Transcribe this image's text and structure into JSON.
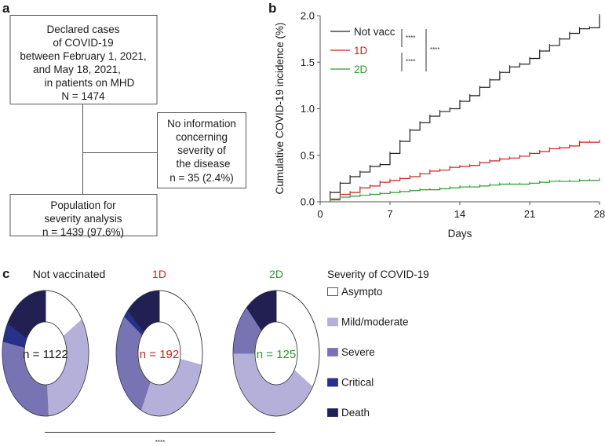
{
  "panels": {
    "a": "a",
    "b": "b",
    "c": "c"
  },
  "flowchart": {
    "top_box": [
      "Declared cases",
      "of COVID-19",
      "between  February 1, 2021,",
      "and May 18, 2021,",
      "in patients on MHD",
      "N = 1474"
    ],
    "excluded_box": [
      "No information",
      "concerning",
      "severity of",
      "the disease",
      "n = 35 (2.4%)"
    ],
    "bottom_box": [
      "Population for",
      "severity analysis",
      "n = 1439 (97.6%)"
    ]
  },
  "chart_data": [
    {
      "type": "line",
      "step": true,
      "xlabel": "Days",
      "ylabel": "Cumulative COVID-19  incidence (%)",
      "xlim": [
        0,
        28
      ],
      "ylim": [
        0,
        2.0
      ],
      "xticks": [
        "0",
        "7",
        "14",
        "21",
        "28"
      ],
      "yticks": [
        "0.0",
        "0.5",
        "1.0",
        "1.5",
        "2.0"
      ],
      "x": [
        1,
        2,
        3,
        4,
        5,
        6,
        7,
        8,
        9,
        10,
        11,
        12,
        13,
        14,
        15,
        16,
        17,
        18,
        19,
        20,
        21,
        22,
        23,
        24,
        25,
        26,
        27,
        28
      ],
      "series": [
        {
          "name": "Not vacc",
          "color": "#222222",
          "values": [
            0.1,
            0.2,
            0.27,
            0.32,
            0.38,
            0.4,
            0.52,
            0.65,
            0.77,
            0.85,
            0.92,
            0.97,
            1.0,
            1.08,
            1.14,
            1.23,
            1.31,
            1.39,
            1.45,
            1.48,
            1.54,
            1.62,
            1.68,
            1.75,
            1.81,
            1.86,
            1.87,
            2.0
          ]
        },
        {
          "name": "1D",
          "color": "#cc2222",
          "values": [
            0.03,
            0.08,
            0.1,
            0.15,
            0.17,
            0.21,
            0.23,
            0.25,
            0.27,
            0.3,
            0.33,
            0.34,
            0.37,
            0.38,
            0.39,
            0.42,
            0.44,
            0.46,
            0.47,
            0.49,
            0.52,
            0.54,
            0.57,
            0.58,
            0.6,
            0.64,
            0.64,
            0.65
          ]
        },
        {
          "name": "2D",
          "color": "#2e9a2e",
          "values": [
            0.02,
            0.05,
            0.06,
            0.07,
            0.08,
            0.09,
            0.1,
            0.11,
            0.12,
            0.13,
            0.13,
            0.14,
            0.15,
            0.16,
            0.16,
            0.17,
            0.18,
            0.19,
            0.19,
            0.19,
            0.2,
            0.21,
            0.22,
            0.22,
            0.22,
            0.23,
            0.23,
            0.24
          ]
        }
      ],
      "annotations": {
        "notvacc_vs_1d": "****",
        "1d_vs_2d": "****",
        "notvacc_vs_2d": "****"
      },
      "legend_placement": "top-left"
    },
    {
      "type": "pie",
      "donut": true,
      "legend_title": "Severity of COVID-19",
      "categories": [
        "Asympto",
        "Mild/moderate",
        "Severe",
        "Critical",
        "Death"
      ],
      "colors": [
        "#ffffff",
        "#b5b0da",
        "#7874b4",
        "#27318a",
        "#222052"
      ],
      "groups": [
        {
          "title": "Not vaccinated",
          "title_color": "#1a1a1a",
          "n_label": "n = 1122",
          "values": [
            16,
            33,
            29,
            5,
            17
          ]
        },
        {
          "title": "1D",
          "title_color": "#cc2222",
          "n_label": "n = 192",
          "values": [
            28,
            29,
            28,
            2,
            13
          ]
        },
        {
          "title": "2D",
          "title_color": "#2e9a2e",
          "n_label": "n = 125",
          "values": [
            34,
            41,
            13,
            0,
            12
          ]
        }
      ],
      "significance": "****",
      "legend_placement": "right"
    }
  ]
}
